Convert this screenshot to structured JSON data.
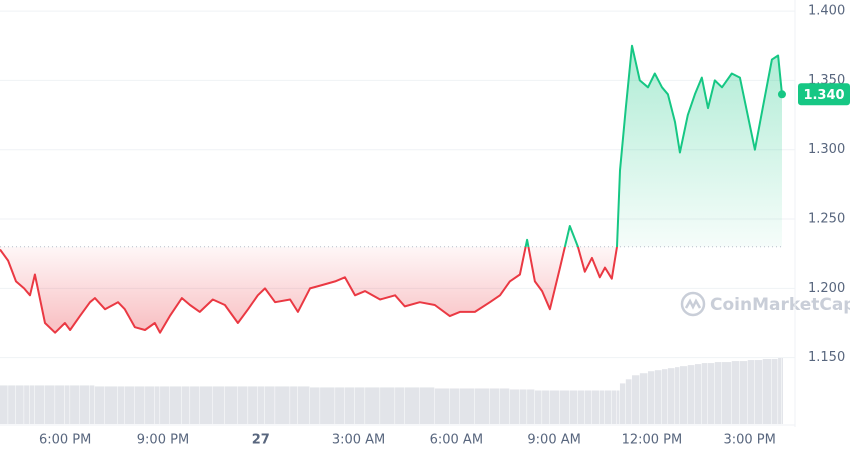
{
  "chart_data": {
    "type": "line",
    "watermark": "CoinMarketCap",
    "baseline": 1.23,
    "current_label": "1.340",
    "x": [
      16.0,
      16.25,
      16.49,
      16.74,
      16.92,
      17.07,
      17.38,
      17.69,
      17.99,
      18.15,
      18.45,
      18.76,
      18.91,
      19.22,
      19.62,
      19.83,
      20.14,
      20.45,
      20.75,
      20.91,
      21.21,
      21.58,
      21.83,
      22.13,
      22.53,
      22.9,
      23.3,
      23.61,
      23.91,
      24.13,
      24.44,
      24.9,
      25.14,
      25.51,
      25.82,
      26.28,
      26.58,
      26.89,
      27.2,
      27.66,
      28.12,
      28.42,
      28.88,
      29.34,
      29.8,
      30.11,
      30.57,
      31.03,
      31.34,
      31.64,
      31.95,
      32.17,
      32.41,
      32.63,
      32.87,
      33.18,
      33.48,
      33.73,
      33.94,
      34.16,
      34.4,
      34.56,
      34.77,
      34.93,
      35.02,
      35.2,
      35.39,
      35.63,
      35.88,
      36.09,
      36.31,
      36.49,
      36.71,
      36.86,
      37.1,
      37.32,
      37.53,
      37.72,
      37.93,
      38.15,
      38.45,
      38.7,
      38.94,
      39.16,
      39.4,
      39.68,
      39.87,
      39.99
    ],
    "values": [
      1.228,
      1.22,
      1.205,
      1.2,
      1.195,
      1.21,
      1.175,
      1.168,
      1.175,
      1.17,
      1.18,
      1.19,
      1.193,
      1.185,
      1.19,
      1.185,
      1.172,
      1.17,
      1.175,
      1.168,
      1.18,
      1.193,
      1.188,
      1.183,
      1.192,
      1.188,
      1.175,
      1.185,
      1.195,
      1.2,
      1.19,
      1.192,
      1.183,
      1.2,
      1.202,
      1.205,
      1.208,
      1.195,
      1.198,
      1.192,
      1.195,
      1.187,
      1.19,
      1.188,
      1.18,
      1.183,
      1.183,
      1.19,
      1.195,
      1.205,
      1.21,
      1.235,
      1.205,
      1.198,
      1.185,
      1.215,
      1.245,
      1.23,
      1.212,
      1.222,
      1.208,
      1.215,
      1.207,
      1.23,
      1.285,
      1.33,
      1.375,
      1.35,
      1.345,
      1.355,
      1.345,
      1.34,
      1.32,
      1.298,
      1.325,
      1.34,
      1.352,
      1.33,
      1.35,
      1.345,
      1.355,
      1.352,
      1.325,
      1.3,
      1.33,
      1.365,
      1.368,
      1.34
    ],
    "volume": [
      38,
      38,
      38,
      38,
      38,
      38,
      38,
      38,
      38,
      38,
      38,
      38,
      37,
      37,
      37,
      37,
      37,
      37,
      37,
      37,
      37,
      37,
      37,
      37,
      37,
      37,
      37,
      37,
      37,
      37,
      37,
      37,
      37,
      36,
      36,
      36,
      36,
      36,
      36,
      36,
      36,
      36,
      36,
      35,
      35,
      35,
      35,
      35,
      35,
      34,
      34,
      34,
      33,
      33,
      33,
      33,
      33,
      33,
      33,
      33,
      33,
      33,
      33,
      33,
      40,
      44,
      48,
      50,
      52,
      53,
      54,
      55,
      56,
      57,
      58,
      59,
      60,
      60,
      61,
      61,
      62,
      62,
      63,
      63,
      64,
      64,
      65,
      65
    ],
    "up_color": "#16c784",
    "down_color": "#ea3943",
    "volume_color": "#d5d9e0",
    "xlim": [
      16,
      40.39
    ],
    "xticks": [
      {
        "value": 18,
        "label": "6:00 PM"
      },
      {
        "value": 21,
        "label": "9:00 PM"
      },
      {
        "value": 24,
        "label": "27"
      },
      {
        "value": 27,
        "label": "3:00 AM"
      },
      {
        "value": 30,
        "label": "6:00 AM"
      },
      {
        "value": 33,
        "label": "9:00 AM"
      },
      {
        "value": 36,
        "label": "12:00 PM"
      },
      {
        "value": 39,
        "label": "3:00 PM"
      }
    ],
    "ylim": [
      1.1,
      1.408
    ],
    "yticks": [
      {
        "value": 1.15,
        "label": "1.150"
      },
      {
        "value": 1.2,
        "label": "1.200"
      },
      {
        "value": 1.25,
        "label": "1.250"
      },
      {
        "value": 1.3,
        "label": "1.300"
      },
      {
        "value": 1.35,
        "label": "1.350"
      },
      {
        "value": 1.4,
        "label": "1.400"
      }
    ],
    "grid": true
  }
}
